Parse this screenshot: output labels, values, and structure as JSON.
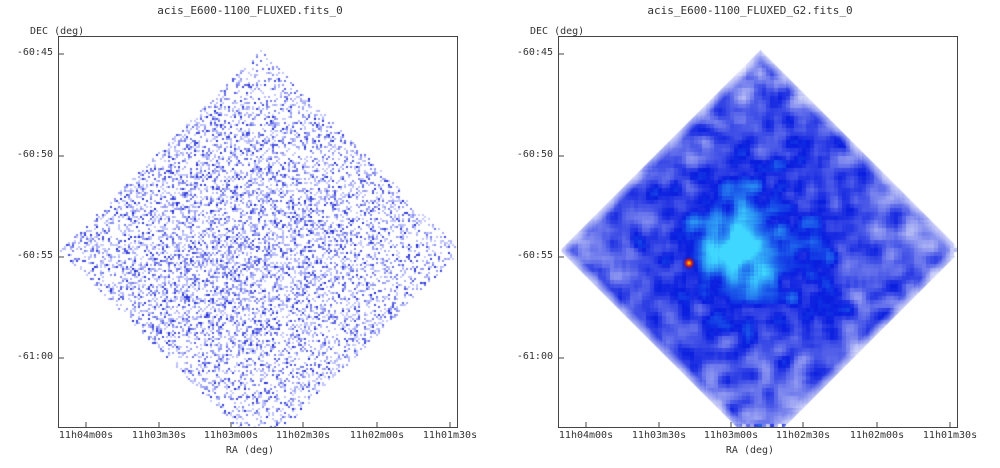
{
  "chart_data": [
    {
      "type": "heatmap",
      "title": "acis_E600-1100_FLUXED.fits_0",
      "xlabel": "RA (deg)",
      "ylabel": "DEC (deg)",
      "x_ticks": [
        "11h04m00s",
        "11h03m30s",
        "11h03m00s",
        "11h02m30s",
        "11h02m00s",
        "11h01m30s"
      ],
      "y_ticks": [
        "-60:45",
        "-60:50",
        "-60:55",
        "-61:00"
      ],
      "style": "sparse-counts",
      "colors": {
        "low": "#c8ccff",
        "high": "#1f2bd6"
      }
    },
    {
      "type": "heatmap",
      "title": "acis_E600-1100_FLUXED_G2.fits_0",
      "xlabel": "RA (deg)",
      "ylabel": "DEC (deg)",
      "x_ticks": [
        "11h04m00s",
        "11h03m30s",
        "11h03m00s",
        "11h02m30s",
        "11h02m00s",
        "11h01m30s"
      ],
      "y_ticks": [
        "-60:45",
        "-60:50",
        "-60:55",
        "-61:00"
      ],
      "style": "smoothed",
      "colors": {
        "low": "#ffffff",
        "mid": "#0a1ee0",
        "high": "#3fd6ff",
        "peak": "#ff2a00"
      }
    }
  ]
}
